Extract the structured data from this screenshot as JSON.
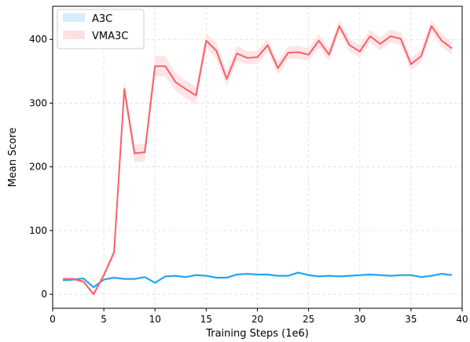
{
  "chart_data": {
    "type": "line",
    "title": "",
    "xlabel": "Training Steps (1e6)",
    "ylabel": "Mean Score",
    "xlim": [
      0,
      40
    ],
    "ylim": [
      -22,
      452
    ],
    "xticks": [
      0,
      5,
      10,
      15,
      20,
      25,
      30,
      35,
      40
    ],
    "yticks": [
      0,
      100,
      200,
      300,
      400
    ],
    "grid": true,
    "legend_position": "top-left",
    "x": [
      1,
      2,
      3,
      4,
      5,
      6,
      7,
      8,
      9,
      10,
      11,
      12,
      13,
      14,
      15,
      16,
      17,
      18,
      19,
      20,
      21,
      22,
      23,
      24,
      25,
      26,
      27,
      28,
      29,
      30,
      31,
      32,
      33,
      34,
      35,
      36,
      37,
      38,
      39
    ],
    "series": [
      {
        "name": "A3C",
        "color": "#1fa2f2",
        "band_color": "#d4edfc",
        "values": [
          22,
          23,
          25,
          11,
          23,
          26,
          24,
          24,
          27,
          18,
          28,
          29,
          27,
          30,
          29,
          26,
          26,
          31,
          32,
          31,
          31,
          29,
          29,
          34,
          30,
          28,
          29,
          28,
          29,
          30,
          31,
          30,
          29,
          30,
          30,
          27,
          29,
          32,
          30
        ],
        "band": [
          2,
          2,
          2,
          3,
          2,
          2,
          2,
          2,
          2,
          2,
          2,
          2,
          2,
          2,
          2,
          2,
          2,
          2,
          2,
          2,
          2,
          2,
          2,
          2,
          2,
          2,
          2,
          2,
          2,
          2,
          2,
          2,
          2,
          2,
          2,
          2,
          2,
          2,
          2
        ]
      },
      {
        "name": "VMA3C",
        "color": "#f8606a",
        "band_color": "#fde0e2",
        "values": [
          24,
          24,
          20,
          0,
          30,
          66,
          322,
          221,
          223,
          358,
          358,
          333,
          322,
          312,
          398,
          382,
          338,
          378,
          371,
          372,
          391,
          355,
          379,
          380,
          376,
          398,
          376,
          421,
          391,
          381,
          405,
          393,
          405,
          401,
          361,
          374,
          421,
          398,
          386
        ],
        "band": [
          3,
          3,
          3,
          3,
          5,
          6,
          14,
          14,
          14,
          16,
          16,
          14,
          14,
          14,
          12,
          12,
          12,
          12,
          10,
          10,
          10,
          10,
          10,
          10,
          10,
          10,
          10,
          10,
          10,
          10,
          10,
          10,
          10,
          10,
          10,
          10,
          10,
          10,
          10
        ]
      }
    ]
  }
}
